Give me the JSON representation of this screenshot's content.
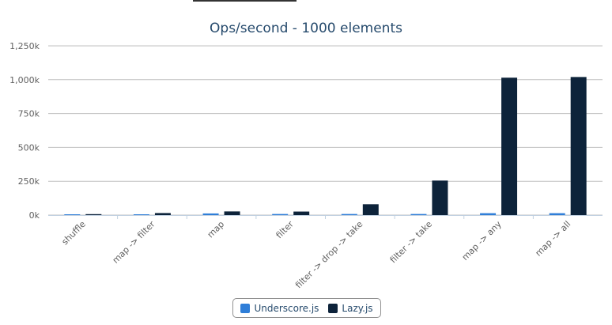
{
  "chart_data": {
    "type": "bar",
    "title": "Ops/second - 1000 elements",
    "categories": [
      "shuffle",
      "map -> filter",
      "map",
      "filter",
      "filter -> drop -> take",
      "filter -> take",
      "map -> any",
      "map -> all"
    ],
    "series": [
      {
        "name": "Underscore.js",
        "color": "#2f7ed8",
        "values": [
          500,
          1500,
          12000,
          8000,
          8000,
          8000,
          14000,
          14000
        ]
      },
      {
        "name": "Lazy.js",
        "color": "#0d233a",
        "values": [
          7000,
          15000,
          27000,
          26000,
          80000,
          255000,
          1015000,
          1020000
        ]
      }
    ],
    "y_ticks": [
      "0k",
      "250k",
      "500k",
      "750k",
      "1,000k",
      "1,250k"
    ],
    "ylim": [
      0,
      1250000
    ],
    "grid": true,
    "legend_position": "bottom-center"
  }
}
